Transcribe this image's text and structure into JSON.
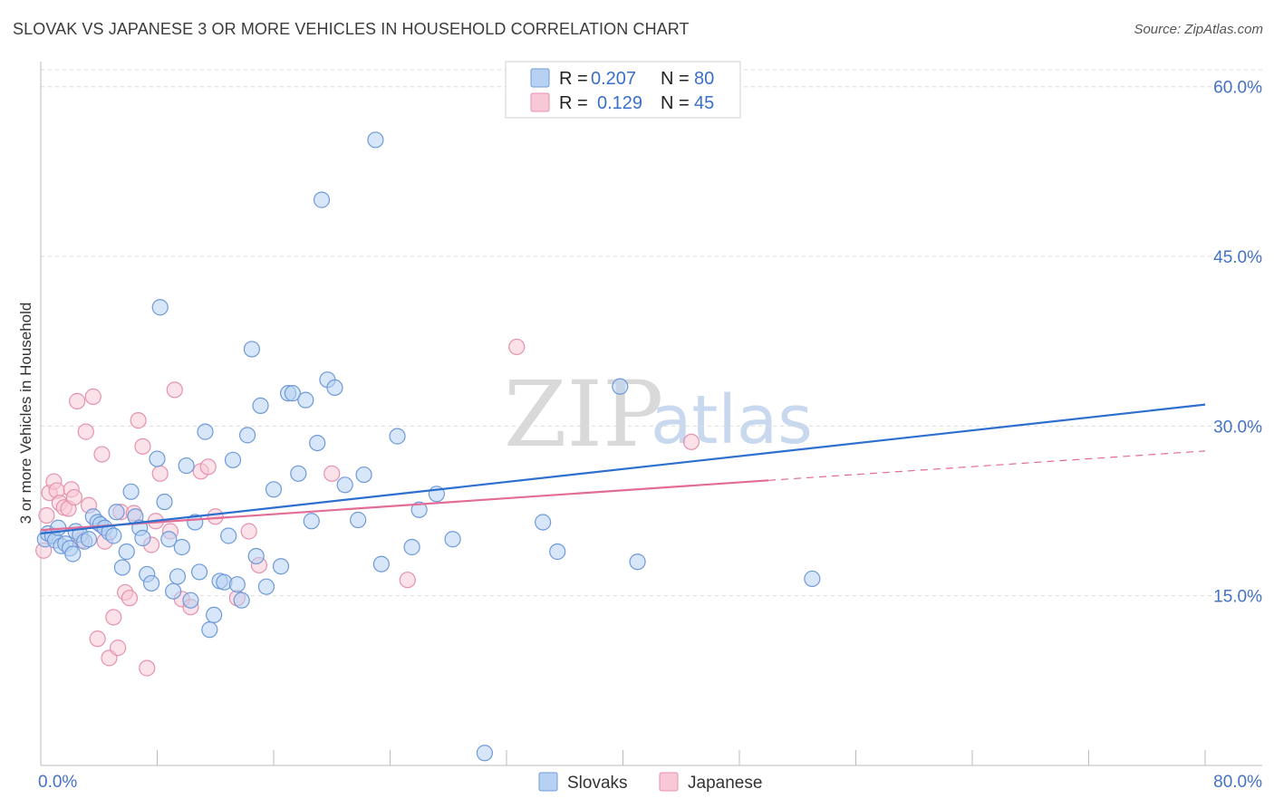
{
  "title": "SLOVAK VS JAPANESE 3 OR MORE VEHICLES IN HOUSEHOLD CORRELATION CHART",
  "source": "Source: ZipAtlas.com",
  "watermark": {
    "zip": "ZIP",
    "atlas": "atlas"
  },
  "colors": {
    "slovaks_fill": "#b7d1f3",
    "slovaks_stroke": "#6f9ad8",
    "slovaks_line": "#2d6fce",
    "japanese_fill": "#f8c8d6",
    "japanese_stroke": "#e592ae",
    "japanese_line": "#e26c95",
    "grid": "#dcdcdc",
    "tick_label": "#4472c4"
  },
  "legend": {
    "slovaks": {
      "r_label": "R =",
      "r_value": "0.207",
      "n_label": "N =",
      "n_value": "80"
    },
    "japanese": {
      "r_label": "R =",
      "r_value": "0.129",
      "n_label": "N =",
      "n_value": "45"
    }
  },
  "chart_data": {
    "type": "scatter",
    "title": "SLOVAK VS JAPANESE 3 OR MORE VEHICLES IN HOUSEHOLD CORRELATION CHART",
    "xlabel": "",
    "ylabel": "3 or more Vehicles in Household",
    "xlim": [
      0,
      80
    ],
    "ylim": [
      0,
      61.5
    ],
    "x_tick_labels": [
      "0.0%",
      "80.0%"
    ],
    "y_ticks": [
      15,
      30,
      45,
      60
    ],
    "y_tick_labels": [
      "15.0%",
      "30.0%",
      "45.0%",
      "60.0%"
    ],
    "grid": true,
    "legend_position": "top-center",
    "series": [
      {
        "name": "Slovaks",
        "trend": {
          "x": [
            0,
            80
          ],
          "y": [
            20.5,
            31.9
          ]
        },
        "points": [
          [
            0.3,
            20.0
          ],
          [
            0.5,
            20.5
          ],
          [
            0.8,
            20.3
          ],
          [
            1.0,
            19.9
          ],
          [
            1.2,
            21.0
          ],
          [
            1.4,
            19.4
          ],
          [
            1.7,
            19.6
          ],
          [
            2.0,
            19.2
          ],
          [
            2.2,
            18.7
          ],
          [
            2.4,
            20.7
          ],
          [
            2.7,
            20.4
          ],
          [
            3.0,
            19.8
          ],
          [
            3.3,
            20.0
          ],
          [
            3.6,
            22.0
          ],
          [
            3.9,
            21.5
          ],
          [
            4.1,
            21.3
          ],
          [
            4.4,
            21.0
          ],
          [
            4.7,
            20.6
          ],
          [
            5.0,
            20.3
          ],
          [
            5.2,
            22.4
          ],
          [
            5.6,
            17.5
          ],
          [
            5.9,
            18.9
          ],
          [
            6.2,
            24.2
          ],
          [
            6.5,
            22.0
          ],
          [
            6.8,
            21.0
          ],
          [
            7.0,
            20.1
          ],
          [
            7.3,
            16.9
          ],
          [
            7.6,
            16.1
          ],
          [
            8.0,
            27.1
          ],
          [
            8.2,
            40.5
          ],
          [
            8.5,
            23.3
          ],
          [
            8.8,
            20.0
          ],
          [
            9.1,
            15.4
          ],
          [
            9.4,
            16.7
          ],
          [
            9.7,
            19.3
          ],
          [
            10.0,
            26.5
          ],
          [
            10.3,
            14.6
          ],
          [
            10.6,
            21.5
          ],
          [
            10.9,
            17.1
          ],
          [
            11.3,
            29.5
          ],
          [
            11.6,
            12.0
          ],
          [
            11.9,
            13.3
          ],
          [
            12.3,
            16.3
          ],
          [
            12.6,
            16.2
          ],
          [
            12.9,
            20.3
          ],
          [
            13.2,
            27.0
          ],
          [
            13.5,
            16.0
          ],
          [
            13.8,
            14.6
          ],
          [
            14.2,
            29.2
          ],
          [
            14.5,
            36.8
          ],
          [
            14.8,
            18.5
          ],
          [
            15.1,
            31.8
          ],
          [
            15.5,
            15.8
          ],
          [
            16.0,
            24.4
          ],
          [
            16.5,
            17.6
          ],
          [
            17.0,
            32.9
          ],
          [
            17.3,
            32.9
          ],
          [
            17.7,
            25.8
          ],
          [
            18.2,
            32.3
          ],
          [
            18.6,
            21.6
          ],
          [
            19.0,
            28.5
          ],
          [
            19.3,
            50.0
          ],
          [
            19.7,
            34.1
          ],
          [
            20.2,
            33.4
          ],
          [
            20.9,
            24.8
          ],
          [
            21.8,
            21.7
          ],
          [
            22.2,
            25.7
          ],
          [
            23.0,
            55.3
          ],
          [
            23.4,
            17.8
          ],
          [
            24.5,
            29.1
          ],
          [
            25.5,
            19.3
          ],
          [
            26.0,
            22.6
          ],
          [
            27.2,
            24.0
          ],
          [
            28.3,
            20.0
          ],
          [
            30.5,
            1.1
          ],
          [
            34.5,
            21.5
          ],
          [
            35.5,
            18.9
          ],
          [
            39.8,
            33.5
          ],
          [
            41.0,
            18.0
          ],
          [
            53.0,
            16.5
          ]
        ]
      },
      {
        "name": "Japanese",
        "trend": {
          "x": [
            0,
            50
          ],
          "y": [
            20.8,
            25.2
          ]
        },
        "trend_dashed": {
          "x": [
            50,
            80
          ],
          "y": [
            25.2,
            27.8
          ]
        },
        "points": [
          [
            0.2,
            19.0
          ],
          [
            0.4,
            22.1
          ],
          [
            0.6,
            24.1
          ],
          [
            0.9,
            25.1
          ],
          [
            1.1,
            24.3
          ],
          [
            1.3,
            23.2
          ],
          [
            1.6,
            22.8
          ],
          [
            1.9,
            22.7
          ],
          [
            2.1,
            24.4
          ],
          [
            2.3,
            23.7
          ],
          [
            2.5,
            32.2
          ],
          [
            2.8,
            19.9
          ],
          [
            3.1,
            29.5
          ],
          [
            3.3,
            23.0
          ],
          [
            3.6,
            32.6
          ],
          [
            3.9,
            11.2
          ],
          [
            4.2,
            27.5
          ],
          [
            4.4,
            19.8
          ],
          [
            4.7,
            9.5
          ],
          [
            5.0,
            13.1
          ],
          [
            5.3,
            10.4
          ],
          [
            5.5,
            22.4
          ],
          [
            5.8,
            15.3
          ],
          [
            6.1,
            14.8
          ],
          [
            6.4,
            22.3
          ],
          [
            6.7,
            30.5
          ],
          [
            7.0,
            28.2
          ],
          [
            7.3,
            8.6
          ],
          [
            7.6,
            19.5
          ],
          [
            7.9,
            21.6
          ],
          [
            8.2,
            25.8
          ],
          [
            8.9,
            20.7
          ],
          [
            9.2,
            33.2
          ],
          [
            9.7,
            14.7
          ],
          [
            10.3,
            14.0
          ],
          [
            11.0,
            26.0
          ],
          [
            11.5,
            26.4
          ],
          [
            12.0,
            22.0
          ],
          [
            13.5,
            14.8
          ],
          [
            14.3,
            20.7
          ],
          [
            15.0,
            17.7
          ],
          [
            20.0,
            25.8
          ],
          [
            25.2,
            16.4
          ],
          [
            32.7,
            37.0
          ],
          [
            44.7,
            28.6
          ]
        ]
      }
    ]
  },
  "bottom_legend": {
    "slovaks": "Slovaks",
    "japanese": "Japanese"
  }
}
